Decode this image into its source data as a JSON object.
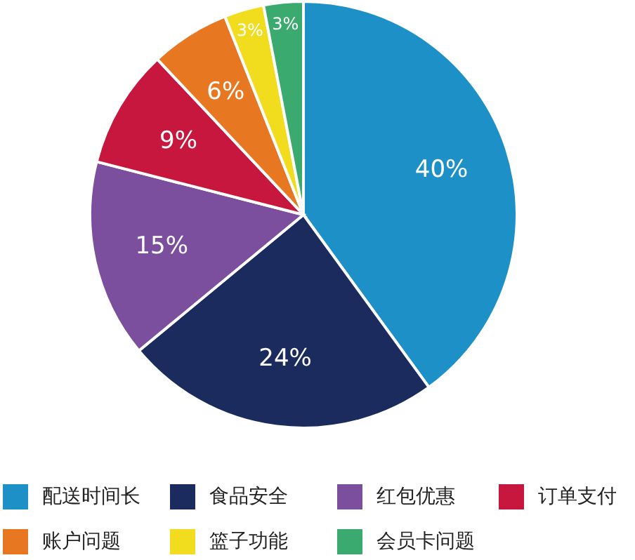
{
  "chart_data": {
    "type": "pie",
    "categories": [
      "配送时间长",
      "食品安全",
      "红包优惠",
      "订单支付",
      "账户问题",
      "篮子功能",
      "会员卡问题"
    ],
    "values": [
      40,
      24,
      15,
      9,
      6,
      3,
      3
    ],
    "colors": [
      "#1e90c8",
      "#1b2b5e",
      "#7b4f9d",
      "#c8173f",
      "#e87722",
      "#f2dc1e",
      "#3aaa6e"
    ],
    "value_labels": [
      "40%",
      "24%",
      "15%",
      "9%",
      "6%",
      "3%",
      "3%"
    ],
    "legend": "bottom"
  }
}
